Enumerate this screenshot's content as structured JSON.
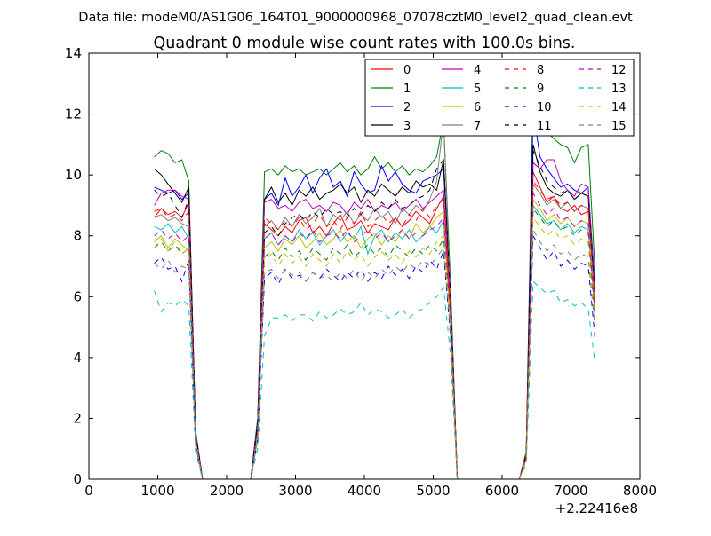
{
  "figure": {
    "suptitle": "Data file: modeM0/AS1G06_164T01_9000000968_07078cztM0_level2_quad_clean.evt",
    "offset_label": "+2.22416e8"
  },
  "chart_data": {
    "type": "line",
    "title": "Quadrant 0 module wise count rates with 100.0s bins.",
    "xlabel": "",
    "ylabel": "",
    "xlim": [
      0,
      8000
    ],
    "ylim": [
      0,
      14
    ],
    "x_ticks": [
      0,
      1000,
      2000,
      3000,
      4000,
      5000,
      6000,
      7000,
      8000
    ],
    "y_ticks": [
      0,
      2,
      4,
      6,
      8,
      10,
      12,
      14
    ],
    "x_offset": 222416000,
    "grid": false,
    "legend_position": "top-right",
    "legend_columns": 4,
    "x": [
      950,
      1050,
      1150,
      1250,
      1350,
      1450,
      1550,
      1650,
      1750,
      1850,
      1950,
      2050,
      2150,
      2250,
      2350,
      2450,
      2550,
      2650,
      2750,
      2850,
      2950,
      3050,
      3150,
      3250,
      3350,
      3450,
      3550,
      3650,
      3750,
      3850,
      3950,
      4050,
      4150,
      4250,
      4350,
      4450,
      4550,
      4650,
      4750,
      4850,
      4950,
      5050,
      5150,
      5250,
      5350,
      5450,
      5550,
      5650,
      5750,
      5850,
      5950,
      6050,
      6150,
      6250,
      6350,
      6450,
      6550,
      6650,
      6750,
      6850,
      6950,
      7050,
      7150,
      7250,
      7350
    ],
    "series": [
      {
        "name": "0",
        "color": "#ff0000",
        "dash": "solid",
        "values": [
          8.6,
          8.9,
          8.7,
          8.8,
          8.6,
          9.1,
          1.4,
          0,
          0,
          0,
          0,
          0,
          0,
          0,
          0,
          1.6,
          8.4,
          8.2,
          8.0,
          8.3,
          8.1,
          8.5,
          8.6,
          8.1,
          8.3,
          8.0,
          8.4,
          8.7,
          8.2,
          8.3,
          8.5,
          8.1,
          8.4,
          8.3,
          8.2,
          8.6,
          8.3,
          8.5,
          8.8,
          8.6,
          8.4,
          8.9,
          9.3,
          5.6,
          0,
          0,
          0,
          0,
          0,
          0,
          0,
          0,
          0,
          0,
          0.7,
          10.1,
          9.6,
          9.1,
          9.3,
          8.9,
          8.8,
          9.0,
          8.7,
          8.8,
          5.9
        ]
      },
      {
        "name": "1",
        "color": "#007f00",
        "dash": "solid",
        "values": [
          10.6,
          10.8,
          10.7,
          10.4,
          10.5,
          9.8,
          1.6,
          0,
          0,
          0,
          0,
          0,
          0,
          0,
          0,
          2.0,
          10.1,
          10.2,
          10.0,
          10.3,
          10.1,
          10.2,
          10.0,
          10.1,
          10.2,
          10.0,
          10.2,
          10.4,
          10.1,
          10.3,
          10.0,
          10.2,
          10.6,
          10.2,
          10.4,
          10.1,
          10.3,
          10.0,
          10.2,
          10.1,
          10.3,
          10.6,
          11.8,
          6.5,
          0,
          0,
          0,
          0,
          0,
          0,
          0,
          0,
          0,
          0,
          0.9,
          12.9,
          11.7,
          11.4,
          11.2,
          11.0,
          10.9,
          10.4,
          10.9,
          11.0,
          6.8
        ]
      },
      {
        "name": "2",
        "color": "#0000ff",
        "dash": "solid",
        "values": [
          9.6,
          9.5,
          9.4,
          9.5,
          9.2,
          9.4,
          1.5,
          0,
          0,
          0,
          0,
          0,
          0,
          0,
          0,
          1.9,
          9.2,
          9.4,
          9.0,
          9.9,
          9.3,
          9.6,
          10.0,
          9.4,
          9.9,
          10.2,
          9.6,
          9.8,
          9.3,
          10.1,
          9.7,
          9.4,
          9.5,
          10.3,
          9.8,
          10.1,
          9.7,
          9.5,
          9.4,
          9.8,
          9.9,
          10.0,
          10.2,
          6.2,
          0,
          0,
          0,
          0,
          0,
          0,
          0,
          0,
          0,
          0,
          0.8,
          12.1,
          10.6,
          10.2,
          9.9,
          9.6,
          9.7,
          9.5,
          9.4,
          9.6,
          6.3
        ]
      },
      {
        "name": "3",
        "color": "#000000",
        "dash": "solid",
        "values": [
          10.2,
          10.0,
          9.7,
          9.4,
          9.1,
          9.6,
          1.5,
          0,
          0,
          0,
          0,
          0,
          0,
          0,
          0,
          1.9,
          9.2,
          9.6,
          9.1,
          9.4,
          9.0,
          9.5,
          9.3,
          9.6,
          9.2,
          9.4,
          9.5,
          9.7,
          9.4,
          9.6,
          9.1,
          9.5,
          9.3,
          9.7,
          9.5,
          9.3,
          9.6,
          9.4,
          9.8,
          9.6,
          9.7,
          9.5,
          10.5,
          6.0,
          0,
          0,
          0,
          0,
          0,
          0,
          0,
          0,
          0,
          0,
          0.8,
          11.0,
          10.1,
          9.6,
          9.4,
          9.3,
          9.5,
          9.2,
          9.4,
          9.3,
          6.1
        ]
      },
      {
        "name": "4",
        "color": "#bf00bf",
        "dash": "solid",
        "values": [
          9.0,
          9.4,
          9.5,
          9.5,
          9.3,
          9.2,
          1.5,
          0,
          0,
          0,
          0,
          0,
          0,
          0,
          0,
          1.8,
          9.1,
          9.2,
          8.9,
          9.0,
          8.8,
          9.1,
          9.2,
          8.9,
          9.0,
          8.8,
          9.1,
          9.0,
          8.7,
          9.1,
          8.9,
          9.2,
          8.8,
          9.0,
          8.9,
          9.1,
          8.8,
          9.0,
          9.2,
          8.9,
          9.1,
          9.3,
          9.5,
          5.8,
          0,
          0,
          0,
          0,
          0,
          0,
          0,
          0,
          0,
          0,
          0.8,
          10.4,
          10.2,
          10.5,
          10.5,
          9.8,
          9.5,
          9.3,
          9.7,
          9.6,
          6.0
        ]
      },
      {
        "name": "5",
        "color": "#00bfbf",
        "dash": "solid",
        "values": [
          8.3,
          8.2,
          8.4,
          8.1,
          8.3,
          7.9,
          1.3,
          0,
          0,
          0,
          0,
          0,
          0,
          0,
          0,
          1.6,
          7.9,
          8.1,
          7.7,
          8.0,
          7.8,
          8.2,
          7.9,
          8.1,
          7.7,
          8.0,
          8.2,
          7.8,
          8.1,
          7.9,
          8.3,
          7.4,
          8.0,
          8.2,
          7.8,
          8.1,
          7.9,
          8.2,
          7.8,
          8.0,
          8.3,
          8.1,
          8.5,
          5.2,
          0,
          0,
          0,
          0,
          0,
          0,
          0,
          0,
          0,
          0,
          0.7,
          9.0,
          8.7,
          8.4,
          8.5,
          8.2,
          8.4,
          8.1,
          8.3,
          8.2,
          5.4
        ]
      },
      {
        "name": "6",
        "color": "#bfbf00",
        "dash": "solid",
        "values": [
          7.8,
          8.0,
          7.6,
          7.9,
          7.7,
          7.5,
          1.2,
          0,
          0,
          0,
          0,
          0,
          0,
          0,
          0,
          1.5,
          7.6,
          7.8,
          7.5,
          7.9,
          7.7,
          8.0,
          7.6,
          7.8,
          8.1,
          7.7,
          7.9,
          8.2,
          7.8,
          8.0,
          7.6,
          7.9,
          8.1,
          7.7,
          8.0,
          7.8,
          8.2,
          7.9,
          8.4,
          8.1,
          8.3,
          8.6,
          8.8,
          5.0,
          0,
          0,
          0,
          0,
          0,
          0,
          0,
          0,
          0,
          0,
          0.7,
          9.2,
          8.9,
          8.5,
          8.7,
          8.4,
          8.6,
          8.3,
          8.5,
          8.4,
          5.2
        ]
      },
      {
        "name": "7",
        "color": "#7f7f7f",
        "dash": "solid",
        "values": [
          8.6,
          8.7,
          8.5,
          8.6,
          8.4,
          8.3,
          1.4,
          0,
          0,
          0,
          0,
          0,
          0,
          0,
          0,
          1.6,
          8.3,
          8.5,
          8.2,
          8.6,
          8.3,
          8.7,
          8.4,
          8.6,
          8.9,
          8.3,
          8.7,
          8.5,
          8.8,
          8.4,
          8.7,
          8.5,
          8.9,
          8.6,
          8.8,
          8.4,
          8.9,
          8.7,
          9.0,
          8.8,
          9.2,
          9.8,
          11.8,
          6.0,
          0,
          0,
          0,
          0,
          0,
          0,
          0,
          0,
          0,
          0,
          0.8,
          9.7,
          9.4,
          9.0,
          9.2,
          8.9,
          9.1,
          8.8,
          9.0,
          8.9,
          5.8
        ]
      },
      {
        "name": "8",
        "color": "#ff0000",
        "dash": "dash",
        "values": [
          8.8,
          8.9,
          8.6,
          8.7,
          8.5,
          8.8,
          1.4,
          0,
          0,
          0,
          0,
          0,
          0,
          0,
          0,
          1.6,
          8.6,
          8.4,
          8.2,
          8.5,
          8.3,
          8.6,
          8.2,
          8.4,
          8.7,
          8.3,
          8.5,
          8.2,
          8.6,
          8.4,
          8.8,
          8.3,
          8.5,
          8.7,
          8.4,
          8.6,
          8.3,
          8.7,
          8.5,
          8.9,
          8.6,
          9.0,
          9.2,
          5.5,
          0,
          0,
          0,
          0,
          0,
          0,
          0,
          0,
          0,
          0,
          0.7,
          9.8,
          9.5,
          9.2,
          9.3,
          9.0,
          9.1,
          8.8,
          9.0,
          8.9,
          5.7
        ]
      },
      {
        "name": "9",
        "color": "#007f00",
        "dash": "dash",
        "values": [
          7.6,
          7.8,
          7.5,
          7.7,
          7.4,
          7.6,
          1.2,
          0,
          0,
          0,
          0,
          0,
          0,
          0,
          0,
          1.5,
          7.3,
          7.5,
          7.2,
          7.6,
          7.3,
          7.5,
          7.2,
          7.6,
          7.4,
          7.2,
          7.6,
          7.4,
          7.7,
          7.3,
          7.5,
          7.7,
          7.4,
          7.6,
          7.3,
          7.7,
          7.5,
          7.3,
          7.6,
          7.4,
          7.7,
          7.5,
          7.9,
          4.9,
          0,
          0,
          0,
          0,
          0,
          0,
          0,
          0,
          0,
          0,
          0.7,
          8.9,
          8.6,
          8.3,
          8.5,
          8.2,
          8.3,
          8.0,
          8.2,
          8.1,
          5.1
        ]
      },
      {
        "name": "10",
        "color": "#0000ff",
        "dash": "dash",
        "values": [
          7.1,
          7.3,
          6.9,
          7.0,
          6.5,
          7.2,
          1.1,
          0,
          0,
          0,
          0,
          0,
          0,
          0,
          0,
          1.3,
          6.6,
          6.8,
          6.4,
          6.9,
          6.6,
          6.7,
          6.5,
          6.8,
          6.6,
          6.9,
          6.7,
          6.5,
          6.8,
          6.6,
          6.9,
          6.5,
          6.8,
          6.6,
          7.0,
          6.7,
          6.9,
          6.6,
          7.0,
          6.8,
          7.2,
          6.9,
          7.5,
          4.7,
          0,
          0,
          0,
          0,
          0,
          0,
          0,
          0,
          0,
          0,
          0.6,
          8.0,
          7.6,
          7.2,
          7.5,
          7.0,
          7.2,
          6.9,
          7.1,
          7.0,
          4.6
        ]
      },
      {
        "name": "11",
        "color": "#000000",
        "dash": "dash",
        "values": [
          9.5,
          9.3,
          9.4,
          9.0,
          8.6,
          9.2,
          1.5,
          0,
          0,
          0,
          0,
          0,
          0,
          0,
          0,
          1.8,
          8.1,
          8.3,
          8.0,
          8.4,
          8.6,
          8.7,
          8.5,
          8.8,
          8.6,
          8.9,
          8.7,
          8.8,
          8.6,
          8.9,
          8.7,
          9.0,
          8.8,
          9.1,
          8.9,
          9.2,
          8.9,
          9.0,
          9.2,
          9.3,
          9.5,
          10.2,
          10.5,
          6.0,
          0,
          0,
          0,
          0,
          0,
          0,
          0,
          0,
          0,
          0,
          0.8,
          10.8,
          10.3,
          9.8,
          9.6,
          9.4,
          9.5,
          9.2,
          9.4,
          9.3,
          6.0
        ]
      },
      {
        "name": "12",
        "color": "#bf00bf",
        "dash": "dash",
        "values": [
          8.0,
          8.2,
          7.9,
          8.1,
          7.8,
          8.0,
          1.3,
          0,
          0,
          0,
          0,
          0,
          0,
          0,
          0,
          1.5,
          7.9,
          8.1,
          7.7,
          8.0,
          7.8,
          8.1,
          7.9,
          8.2,
          7.8,
          8.0,
          8.1,
          7.9,
          8.2,
          7.8,
          8.0,
          8.2,
          7.9,
          8.1,
          7.8,
          8.0,
          8.2,
          7.9,
          8.1,
          8.0,
          8.2,
          8.3,
          8.6,
          5.3,
          0,
          0,
          0,
          0,
          0,
          0,
          0,
          0,
          0,
          0,
          0.7,
          9.4,
          9.0,
          8.7,
          8.9,
          8.5,
          8.6,
          8.3,
          8.5,
          8.4,
          5.4
        ]
      },
      {
        "name": "13",
        "color": "#00bfbf",
        "dash": "dash",
        "values": [
          6.2,
          5.5,
          5.8,
          5.7,
          5.9,
          5.7,
          0.9,
          0,
          0,
          0,
          0,
          0,
          0,
          0,
          0,
          1.0,
          4.7,
          5.3,
          5.3,
          5.4,
          5.2,
          5.4,
          5.4,
          5.2,
          5.5,
          5.3,
          5.4,
          5.6,
          5.4,
          5.5,
          5.8,
          5.4,
          5.6,
          5.5,
          5.3,
          5.4,
          5.6,
          5.3,
          5.5,
          5.6,
          5.8,
          6.0,
          6.3,
          4.1,
          0,
          0,
          0,
          0,
          0,
          0,
          0,
          0,
          0,
          0,
          0.5,
          6.5,
          6.3,
          6.1,
          6.2,
          5.8,
          5.9,
          5.7,
          5.8,
          5.6,
          3.8
        ]
      },
      {
        "name": "14",
        "color": "#bfbf00",
        "dash": "dash",
        "values": [
          7.6,
          7.9,
          7.5,
          7.8,
          7.4,
          7.6,
          1.2,
          0,
          0,
          0,
          0,
          0,
          0,
          0,
          0,
          1.4,
          7.2,
          7.4,
          7.0,
          7.4,
          7.1,
          7.3,
          7.0,
          7.4,
          7.2,
          7.0,
          7.4,
          7.1,
          7.5,
          7.2,
          7.4,
          7.0,
          7.3,
          7.5,
          7.2,
          7.4,
          7.1,
          7.5,
          7.3,
          7.6,
          7.4,
          7.8,
          8.0,
          5.0,
          0,
          0,
          0,
          0,
          0,
          0,
          0,
          0,
          0,
          0,
          0.6,
          8.6,
          8.3,
          8.0,
          8.2,
          7.9,
          8.0,
          7.7,
          7.9,
          7.8,
          5.0
        ]
      },
      {
        "name": "15",
        "color": "#7f7f7f",
        "dash": "dash",
        "values": [
          7.1,
          6.9,
          7.2,
          6.8,
          7.0,
          6.9,
          1.1,
          0,
          0,
          0,
          0,
          0,
          0,
          0,
          0,
          1.3,
          6.8,
          6.9,
          6.6,
          6.9,
          6.7,
          6.8,
          6.5,
          6.8,
          6.6,
          6.7,
          6.5,
          6.8,
          6.6,
          6.9,
          6.5,
          6.8,
          6.6,
          6.9,
          6.7,
          7.0,
          6.8,
          7.1,
          6.9,
          7.2,
          7.0,
          7.3,
          7.6,
          4.8,
          0,
          0,
          0,
          0,
          0,
          0,
          0,
          0,
          0,
          0,
          0.6,
          8.2,
          7.8,
          7.5,
          7.7,
          7.4,
          7.5,
          7.2,
          7.4,
          7.3,
          4.9
        ]
      }
    ]
  }
}
